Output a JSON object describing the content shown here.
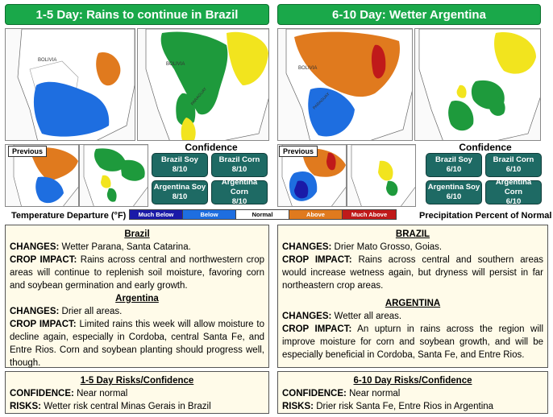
{
  "colors": {
    "header_bg": "#1aa84a",
    "confidence_bg": "#1e6a64",
    "much_below": "#1a1aa8",
    "below": "#1e6ee0",
    "normal": "#ffffff",
    "above": "#e07a1e",
    "much_above": "#c01a1a",
    "rain_green": "#1e9a3c",
    "dry_yellow": "#f2e41e",
    "panel_bg": "#fffbe9"
  },
  "left": {
    "title": "1-5 Day: Rains to continue in Brazil",
    "previous_label": "Previous",
    "map_labels": [
      "BOLIVIA",
      "BOLIVIA",
      "PARAGUAY"
    ],
    "confidence_title": "Confidence",
    "confidence": [
      {
        "name": "Brazil Soy",
        "value": "8/10"
      },
      {
        "name": "Brazil Corn",
        "value": "8/10"
      },
      {
        "name": "Argentina Soy",
        "value": "8/10"
      },
      {
        "name": "Argentina Corn",
        "value": "8/10"
      }
    ],
    "brazil_heading": "Brazil",
    "brazil_changes_label": "CHANGES:",
    "brazil_changes": "Wetter Parana, Santa Catarina.",
    "brazil_impact_label": "CROP IMPACT:",
    "brazil_impact": "Rains across central and northwestern crop areas will continue to replenish soil moisture, favoring corn and soybean germination and early growth.",
    "argentina_heading": "Argentina",
    "argentina_changes_label": "CHANGES:",
    "argentina_changes": "Drier all areas.",
    "argentina_impact_label": "CROP IMPACT:",
    "argentina_impact": "Limited rains this week will allow moisture to decline again, especially in Cordoba, central Santa Fe, and Entre Rios. Corn and soybean planting should progress well, though.",
    "risk_heading": "1-5 Day Risks/Confidence",
    "risk_conf_label": "CONFIDENCE:",
    "risk_conf": "Near normal",
    "risk_label": "RISKS:",
    "risk": "Wetter risk central Minas Gerais in Brazil"
  },
  "right": {
    "title": "6-10 Day: Wetter Argentina",
    "previous_label": "Previous",
    "map_labels": [
      "BOLIVIA",
      "PARAGUAY"
    ],
    "confidence_title": "Confidence",
    "confidence": [
      {
        "name": "Brazil Soy",
        "value": "6/10"
      },
      {
        "name": "Brazil Corn",
        "value": "6/10"
      },
      {
        "name": "Argentina Soy",
        "value": "6/10"
      },
      {
        "name": "Argentina Corn",
        "value": "6/10"
      }
    ],
    "brazil_heading": "BRAZIL",
    "brazil_changes_label": "CHANGES:",
    "brazil_changes": "Drier Mato Grosso, Goias.",
    "brazil_impact_label": "CROP IMPACT:",
    "brazil_impact": "Rains across central and southern areas would increase wetness again, but dryness will persist in far northeastern crop areas.",
    "argentina_heading": "ARGENTINA",
    "argentina_changes_label": "CHANGES:",
    "argentina_changes": "Wetter all areas.",
    "argentina_impact_label": "CROP IMPACT:",
    "argentina_impact": "An upturn in rains across the region will improve moisture for corn and soybean growth, and will be especially beneficial in Cordoba, Santa Fe, and Entre Rios.",
    "risk_heading": "6-10 Day Risks/Confidence",
    "risk_conf_label": "CONFIDENCE:",
    "risk_conf": "Near normal",
    "risk_label": "RISKS:",
    "risk": "Drier risk Santa Fe, Entre Rios in Argentina"
  },
  "legend": {
    "temp_title": "Temperature Departure (°F)",
    "precip_title": "Precipitation Percent of Normal",
    "items": [
      "Much Below",
      "Below",
      "Normal",
      "Above",
      "Much Above"
    ]
  }
}
